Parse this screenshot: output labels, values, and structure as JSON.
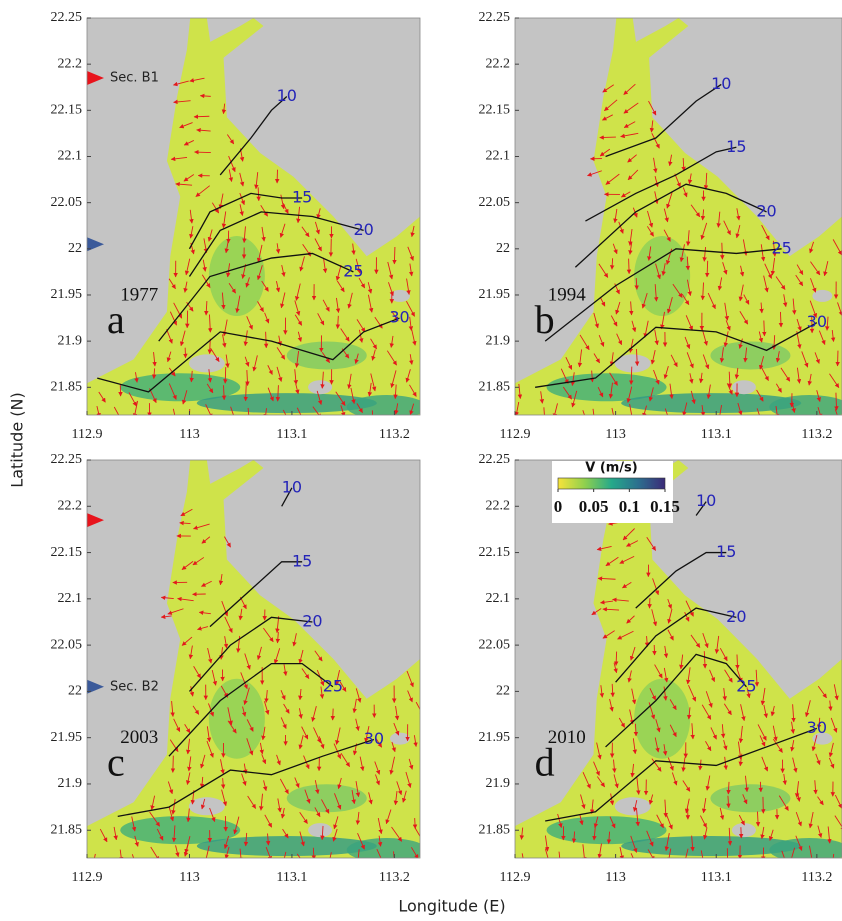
{
  "x_axis_label": "Longitude (E)",
  "y_axis_label": "Latitude (N)",
  "xlim": [
    112.9,
    113.225
  ],
  "ylim": [
    21.82,
    22.25
  ],
  "xticks": [
    112.9,
    113,
    113.1,
    113.2
  ],
  "yticks": [
    21.85,
    21.9,
    21.95,
    22,
    22.05,
    22.1,
    22.15,
    22.2,
    22.25
  ],
  "land_color": "#c4c4c4",
  "water_color": "#cfe34a",
  "arrow_color": "#e3191c",
  "contour_color": "#111111",
  "contour_label_color": "#2424b8",
  "panels": [
    {
      "letter": "a",
      "year": "1977",
      "markers": [
        {
          "lat": 22.185,
          "color": "#e8141c",
          "label": "Sec. B1"
        },
        {
          "lat": 22.005,
          "color": "#3b5a9a"
        }
      ],
      "contours": [
        {
          "level": 10,
          "points": [
            [
              113.03,
              22.08
            ],
            [
              113.06,
              22.12
            ],
            [
              113.08,
              22.15
            ],
            [
              113.095,
              22.165
            ]
          ]
        },
        {
          "level": 15,
          "points": [
            [
              113.0,
              22.0
            ],
            [
              113.02,
              22.04
            ],
            [
              113.06,
              22.06
            ],
            [
              113.09,
              22.055
            ],
            [
              113.11,
              22.055
            ]
          ]
        },
        {
          "level": 20,
          "points": [
            [
              113.0,
              21.97
            ],
            [
              113.03,
              22.02
            ],
            [
              113.07,
              22.04
            ],
            [
              113.12,
              22.035
            ],
            [
              113.17,
              22.02
            ]
          ]
        },
        {
          "level": 25,
          "points": [
            [
              112.97,
              21.9
            ],
            [
              113.02,
              21.97
            ],
            [
              113.08,
              21.99
            ],
            [
              113.12,
              21.995
            ],
            [
              113.16,
              21.975
            ]
          ]
        },
        {
          "level": 30,
          "points": [
            [
              112.91,
              21.86
            ],
            [
              112.96,
              21.845
            ],
            [
              113.03,
              21.91
            ],
            [
              113.08,
              21.9
            ],
            [
              113.14,
              21.88
            ],
            [
              113.17,
              21.91
            ],
            [
              113.205,
              21.925
            ]
          ]
        }
      ]
    },
    {
      "letter": "b",
      "year": "1994",
      "markers": [],
      "contours": [
        {
          "level": 10,
          "points": [
            [
              112.99,
              22.1
            ],
            [
              113.04,
              22.12
            ],
            [
              113.08,
              22.16
            ],
            [
              113.105,
              22.178
            ]
          ]
        },
        {
          "level": 15,
          "points": [
            [
              112.97,
              22.03
            ],
            [
              113.02,
              22.06
            ],
            [
              113.06,
              22.08
            ],
            [
              113.1,
              22.105
            ],
            [
              113.12,
              22.11
            ]
          ]
        },
        {
          "level": 20,
          "points": [
            [
              112.96,
              21.98
            ],
            [
              113.02,
              22.04
            ],
            [
              113.07,
              22.07
            ],
            [
              113.11,
              22.06
            ],
            [
              113.15,
              22.04
            ]
          ]
        },
        {
          "level": 25,
          "points": [
            [
              112.93,
              21.9
            ],
            [
              113.0,
              21.96
            ],
            [
              113.06,
              22.0
            ],
            [
              113.12,
              21.995
            ],
            [
              113.165,
              22.0
            ]
          ]
        },
        {
          "level": 30,
          "points": [
            [
              112.92,
              21.85
            ],
            [
              112.98,
              21.86
            ],
            [
              113.04,
              21.915
            ],
            [
              113.1,
              21.91
            ],
            [
              113.15,
              21.89
            ],
            [
              113.2,
              21.92
            ]
          ]
        }
      ]
    },
    {
      "letter": "c",
      "year": "2003",
      "markers": [
        {
          "lat": 22.185,
          "color": "#e8141c"
        },
        {
          "lat": 22.005,
          "color": "#3b5a9a",
          "label": "Sec. B2"
        }
      ],
      "contours": [
        {
          "level": 10,
          "points": [
            [
              113.09,
              22.2
            ],
            [
              113.1,
              22.22
            ]
          ]
        },
        {
          "level": 15,
          "points": [
            [
              113.02,
              22.07
            ],
            [
              113.06,
              22.11
            ],
            [
              113.09,
              22.14
            ],
            [
              113.11,
              22.14
            ]
          ]
        },
        {
          "level": 20,
          "points": [
            [
              113.0,
              22.0
            ],
            [
              113.04,
              22.05
            ],
            [
              113.08,
              22.08
            ],
            [
              113.12,
              22.075
            ]
          ]
        },
        {
          "level": 25,
          "points": [
            [
              112.98,
              21.93
            ],
            [
              113.03,
              21.99
            ],
            [
              113.08,
              22.03
            ],
            [
              113.11,
              22.03
            ],
            [
              113.14,
              22.005
            ]
          ]
        },
        {
          "level": 30,
          "points": [
            [
              112.93,
              21.865
            ],
            [
              112.98,
              21.875
            ],
            [
              113.04,
              21.915
            ],
            [
              113.08,
              21.91
            ],
            [
              113.13,
              21.93
            ],
            [
              113.18,
              21.948
            ]
          ]
        }
      ]
    },
    {
      "letter": "d",
      "year": "2010",
      "markers": [],
      "contours": [
        {
          "level": 10,
          "points": [
            [
              113.08,
              22.19
            ],
            [
              113.09,
              22.205
            ]
          ]
        },
        {
          "level": 15,
          "points": [
            [
              113.02,
              22.09
            ],
            [
              113.06,
              22.13
            ],
            [
              113.09,
              22.15
            ],
            [
              113.11,
              22.15
            ]
          ]
        },
        {
          "level": 20,
          "points": [
            [
              113.0,
              22.01
            ],
            [
              113.04,
              22.06
            ],
            [
              113.08,
              22.09
            ],
            [
              113.12,
              22.08
            ]
          ]
        },
        {
          "level": 25,
          "points": [
            [
              112.99,
              21.94
            ],
            [
              113.04,
              21.99
            ],
            [
              113.08,
              22.04
            ],
            [
              113.11,
              22.03
            ],
            [
              113.13,
              22.005
            ]
          ]
        },
        {
          "level": 30,
          "points": [
            [
              112.93,
              21.86
            ],
            [
              112.98,
              21.87
            ],
            [
              113.04,
              21.925
            ],
            [
              113.1,
              21.92
            ],
            [
              113.15,
              21.94
            ],
            [
              113.2,
              21.96
            ]
          ]
        }
      ],
      "colorbar": {
        "title": "V (m/s)",
        "lim": [
          0,
          0.15
        ],
        "ticks": [
          0,
          0.05,
          0.1,
          0.15
        ],
        "colors": [
          "#f7e33a",
          "#8fd04e",
          "#26a98a",
          "#2c6f8e",
          "#3b2a78"
        ]
      }
    }
  ]
}
